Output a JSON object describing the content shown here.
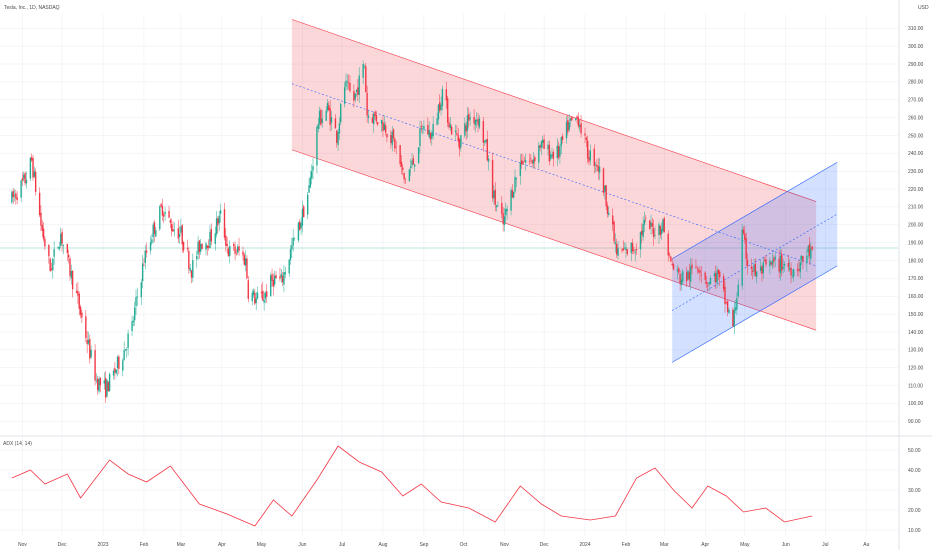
{
  "header": {
    "title": "Tesla, Inc., 1D, NASDAQ",
    "currency": "USD"
  },
  "indicator": {
    "label": "ADX (14, 14)"
  },
  "colors": {
    "up": "#22ab94",
    "down": "#f23645",
    "adx": "#f23645",
    "channel_down_fill": "#f23645",
    "channel_up_fill": "#2962ff",
    "reference_line": "#22ab94",
    "grid": "#e9ecf1"
  },
  "chart_data": [
    {
      "type": "candlestick",
      "title": "",
      "x_axis_labels": [
        "Nov",
        "Dec",
        "2023",
        "Feb",
        "Mar",
        "Apr",
        "May",
        "Jun",
        "Jul",
        "Aug",
        "Sep",
        "Oct",
        "Nov",
        "Dec",
        "2024",
        "Feb",
        "Mar",
        "Apr",
        "May",
        "Jun",
        "Jul",
        "Au"
      ],
      "y_axis_labels": [
        "310.00",
        "300.00",
        "290.00",
        "280.00",
        "270.00",
        "260.00",
        "250.00",
        "240.00",
        "230.00",
        "220.00",
        "210.00",
        "200.00",
        "190.00",
        "180.00",
        "170.00",
        "160.00",
        "150.00",
        "140.00",
        "130.00",
        "120.00",
        "110.00",
        "100.00",
        "90.00"
      ],
      "ylim": [
        84,
        318
      ],
      "reference_price": 187,
      "close_path": [
        {
          "date": "2022-10-24",
          "close": 214
        },
        {
          "date": "2022-11-03",
          "close": 225
        },
        {
          "date": "2022-11-08",
          "close": 236
        },
        {
          "date": "2022-11-15",
          "close": 200
        },
        {
          "date": "2022-11-22",
          "close": 175
        },
        {
          "date": "2022-11-30",
          "close": 195
        },
        {
          "date": "2022-12-05",
          "close": 180
        },
        {
          "date": "2022-12-12",
          "close": 160
        },
        {
          "date": "2022-12-20",
          "close": 135
        },
        {
          "date": "2022-12-27",
          "close": 113
        },
        {
          "date": "2023-01-03",
          "close": 108
        },
        {
          "date": "2023-01-06",
          "close": 112
        },
        {
          "date": "2023-01-10",
          "close": 118
        },
        {
          "date": "2023-01-17",
          "close": 130
        },
        {
          "date": "2023-01-23",
          "close": 143
        },
        {
          "date": "2023-01-27",
          "close": 160
        },
        {
          "date": "2023-02-01",
          "close": 180
        },
        {
          "date": "2023-02-07",
          "close": 195
        },
        {
          "date": "2023-02-15",
          "close": 210
        },
        {
          "date": "2023-02-21",
          "close": 200
        },
        {
          "date": "2023-03-01",
          "close": 195
        },
        {
          "date": "2023-03-09",
          "close": 175
        },
        {
          "date": "2023-03-16",
          "close": 190
        },
        {
          "date": "2023-03-23",
          "close": 192
        },
        {
          "date": "2023-03-31",
          "close": 205
        },
        {
          "date": "2023-04-06",
          "close": 185
        },
        {
          "date": "2023-04-14",
          "close": 185
        },
        {
          "date": "2023-04-19",
          "close": 180
        },
        {
          "date": "2023-04-21",
          "close": 163
        },
        {
          "date": "2023-04-27",
          "close": 158
        },
        {
          "date": "2023-05-03",
          "close": 160
        },
        {
          "date": "2023-05-10",
          "close": 170
        },
        {
          "date": "2023-05-16",
          "close": 168
        },
        {
          "date": "2023-05-23",
          "close": 185
        },
        {
          "date": "2023-05-30",
          "close": 200
        },
        {
          "date": "2023-06-06",
          "close": 220
        },
        {
          "date": "2023-06-13",
          "close": 258
        },
        {
          "date": "2023-06-20",
          "close": 265
        },
        {
          "date": "2023-06-27",
          "close": 250
        },
        {
          "date": "2023-07-03",
          "close": 278
        },
        {
          "date": "2023-07-10",
          "close": 270
        },
        {
          "date": "2023-07-18",
          "close": 290
        },
        {
          "date": "2023-07-20",
          "close": 262
        },
        {
          "date": "2023-07-27",
          "close": 260
        },
        {
          "date": "2023-08-03",
          "close": 255
        },
        {
          "date": "2023-08-10",
          "close": 245
        },
        {
          "date": "2023-08-17",
          "close": 225
        },
        {
          "date": "2023-08-24",
          "close": 235
        },
        {
          "date": "2023-08-31",
          "close": 255
        },
        {
          "date": "2023-09-07",
          "close": 250
        },
        {
          "date": "2023-09-15",
          "close": 275
        },
        {
          "date": "2023-09-21",
          "close": 255
        },
        {
          "date": "2023-09-28",
          "close": 247
        },
        {
          "date": "2023-10-05",
          "close": 260
        },
        {
          "date": "2023-10-12",
          "close": 260
        },
        {
          "date": "2023-10-18",
          "close": 243
        },
        {
          "date": "2023-10-24",
          "close": 215
        },
        {
          "date": "2023-10-31",
          "close": 200
        },
        {
          "date": "2023-11-07",
          "close": 220
        },
        {
          "date": "2023-11-14",
          "close": 237
        },
        {
          "date": "2023-11-21",
          "close": 235
        },
        {
          "date": "2023-11-28",
          "close": 245
        },
        {
          "date": "2023-12-05",
          "close": 240
        },
        {
          "date": "2023-12-12",
          "close": 240
        },
        {
          "date": "2023-12-19",
          "close": 255
        },
        {
          "date": "2023-12-27",
          "close": 260
        },
        {
          "date": "2024-01-03",
          "close": 240
        },
        {
          "date": "2024-01-10",
          "close": 235
        },
        {
          "date": "2024-01-17",
          "close": 215
        },
        {
          "date": "2024-01-25",
          "close": 184
        },
        {
          "date": "2024-02-01",
          "close": 185
        },
        {
          "date": "2024-02-08",
          "close": 188
        },
        {
          "date": "2024-02-15",
          "close": 200
        },
        {
          "date": "2024-02-22",
          "close": 197
        },
        {
          "date": "2024-02-29",
          "close": 200
        },
        {
          "date": "2024-03-06",
          "close": 178
        },
        {
          "date": "2024-03-13",
          "close": 170
        },
        {
          "date": "2024-03-20",
          "close": 172
        },
        {
          "date": "2024-03-27",
          "close": 178
        },
        {
          "date": "2024-04-03",
          "close": 168
        },
        {
          "date": "2024-04-10",
          "close": 172
        },
        {
          "date": "2024-04-17",
          "close": 155
        },
        {
          "date": "2024-04-22",
          "close": 143
        },
        {
          "date": "2024-04-26",
          "close": 168
        },
        {
          "date": "2024-04-29",
          "close": 194
        },
        {
          "date": "2024-05-03",
          "close": 180
        },
        {
          "date": "2024-05-10",
          "close": 172
        },
        {
          "date": "2024-05-17",
          "close": 176
        },
        {
          "date": "2024-05-24",
          "close": 178
        },
        {
          "date": "2024-05-31",
          "close": 178
        },
        {
          "date": "2024-06-07",
          "close": 175
        },
        {
          "date": "2024-06-14",
          "close": 180
        },
        {
          "date": "2024-06-18",
          "close": 185
        },
        {
          "date": "2024-06-21",
          "close": 183
        }
      ],
      "descending_channel": {
        "start_date": "2023-05-24",
        "end_date": "2024-06-24",
        "top": [
          315,
          213
        ],
        "mid": [
          279,
          177
        ],
        "bottom": [
          242,
          141
        ]
      },
      "ascending_channel": {
        "start_date": "2024-03-07",
        "end_date": "2024-07-10",
        "top": [
          181,
          235
        ],
        "mid": [
          152,
          206
        ],
        "bottom": [
          123,
          177
        ]
      }
    },
    {
      "type": "line",
      "name": "ADX (14, 14)",
      "y_axis_labels": [
        "50.00",
        "40.00",
        "30.00",
        "20.00",
        "10.00"
      ],
      "ylim": [
        7,
        55
      ],
      "points": [
        {
          "date": "2022-10-24",
          "value": 36
        },
        {
          "date": "2022-11-07",
          "value": 40
        },
        {
          "date": "2022-11-18",
          "value": 33
        },
        {
          "date": "2022-12-05",
          "value": 38
        },
        {
          "date": "2022-12-15",
          "value": 26
        },
        {
          "date": "2023-01-06",
          "value": 45
        },
        {
          "date": "2023-01-20",
          "value": 38
        },
        {
          "date": "2023-02-03",
          "value": 34
        },
        {
          "date": "2023-02-21",
          "value": 42
        },
        {
          "date": "2023-03-15",
          "value": 23
        },
        {
          "date": "2023-04-05",
          "value": 18
        },
        {
          "date": "2023-04-26",
          "value": 12
        },
        {
          "date": "2023-05-10",
          "value": 25
        },
        {
          "date": "2023-05-24",
          "value": 17
        },
        {
          "date": "2023-06-12",
          "value": 35
        },
        {
          "date": "2023-06-28",
          "value": 52
        },
        {
          "date": "2023-07-14",
          "value": 44
        },
        {
          "date": "2023-07-31",
          "value": 39
        },
        {
          "date": "2023-08-16",
          "value": 27
        },
        {
          "date": "2023-08-30",
          "value": 33
        },
        {
          "date": "2023-09-14",
          "value": 24
        },
        {
          "date": "2023-10-05",
          "value": 21
        },
        {
          "date": "2023-10-25",
          "value": 14
        },
        {
          "date": "2023-11-13",
          "value": 32
        },
        {
          "date": "2023-11-29",
          "value": 23
        },
        {
          "date": "2023-12-14",
          "value": 17
        },
        {
          "date": "2024-01-05",
          "value": 15
        },
        {
          "date": "2024-01-24",
          "value": 17
        },
        {
          "date": "2024-02-09",
          "value": 36
        },
        {
          "date": "2024-02-23",
          "value": 41
        },
        {
          "date": "2024-03-08",
          "value": 30
        },
        {
          "date": "2024-03-22",
          "value": 21
        },
        {
          "date": "2024-04-03",
          "value": 32
        },
        {
          "date": "2024-04-17",
          "value": 27
        },
        {
          "date": "2024-04-30",
          "value": 19
        },
        {
          "date": "2024-05-17",
          "value": 21
        },
        {
          "date": "2024-05-31",
          "value": 14
        },
        {
          "date": "2024-06-14",
          "value": 16
        },
        {
          "date": "2024-06-21",
          "value": 17
        }
      ]
    }
  ]
}
